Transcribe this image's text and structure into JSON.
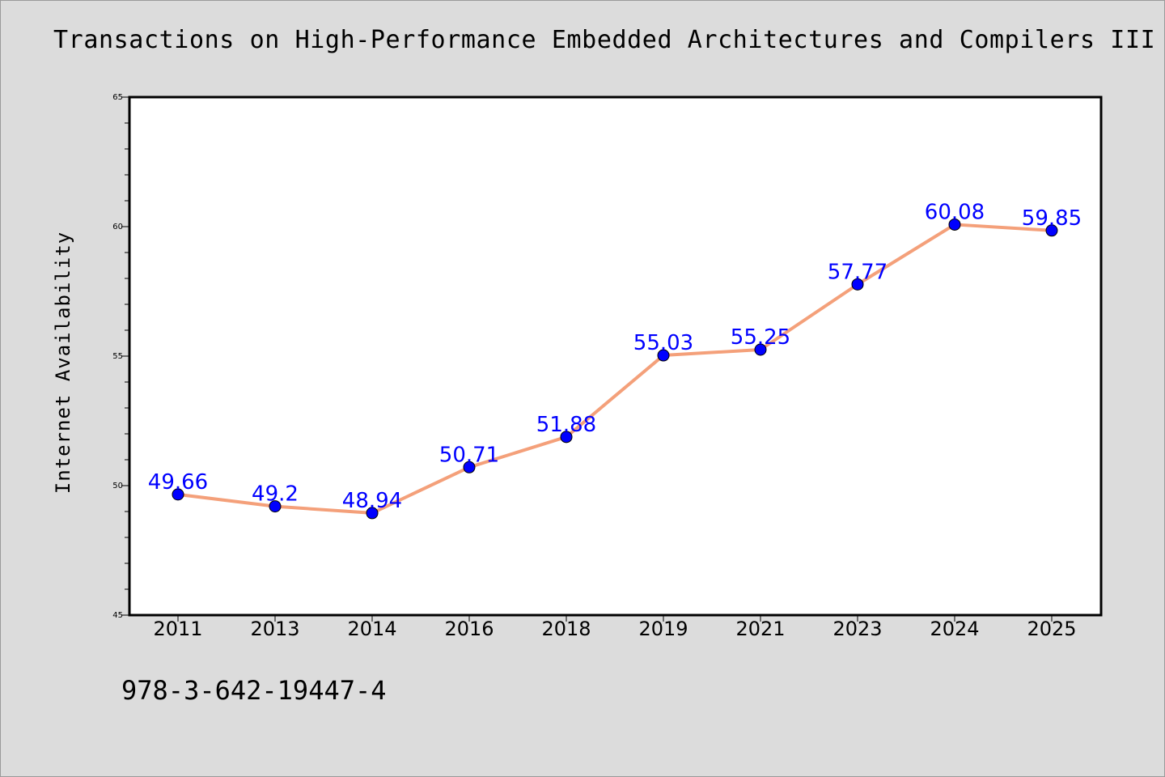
{
  "chart_data": {
    "type": "line",
    "title": "Transactions on High-Performance Embedded Architectures and Compilers III",
    "xlabel": "",
    "ylabel": "Internet Availability",
    "categories": [
      "2011",
      "2013",
      "2014",
      "2016",
      "2018",
      "2019",
      "2021",
      "2023",
      "2024",
      "2025"
    ],
    "series": [
      {
        "values": [
          49.66,
          49.2,
          48.94,
          50.71,
          51.88,
          55.03,
          55.25,
          57.77,
          60.08,
          59.85
        ],
        "labels": [
          "49.66",
          "49.2",
          "48.94",
          "50.71",
          "51.88",
          "55.03",
          "55.25",
          "57.77",
          "60.08",
          "59.85"
        ],
        "line_color": "#f4a07a",
        "marker_color": "#0000ff"
      }
    ],
    "ylim": [
      45,
      65
    ],
    "yticks": [
      "45",
      "50",
      "55",
      "60",
      "65"
    ],
    "grid": false,
    "legend": "none"
  },
  "footer": {
    "isbn": "978-3-642-19447-4"
  },
  "colors": {
    "background": "#dcdcdc",
    "plot_area": "#ffffff",
    "line": "#f4a07a",
    "marker": "#0000ff",
    "data_label": "#0000ff"
  }
}
